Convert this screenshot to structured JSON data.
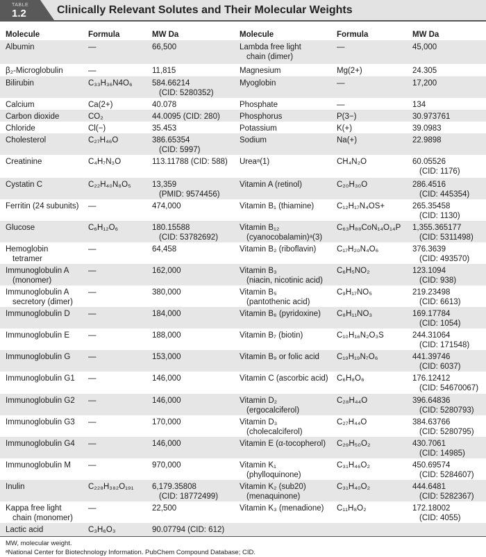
{
  "header": {
    "tag_label": "TABLE",
    "tag_number": "1.2",
    "title": "Clinically Relevant Solutes and Their Molecular Weights"
  },
  "columns": [
    "Molecule",
    "Formula",
    "MW Da",
    "Molecule",
    "Formula",
    "MW Da"
  ],
  "rows": [
    {
      "h": 34,
      "l": [
        "Albumin",
        "—",
        "66,500"
      ],
      "r": [
        "Lambda free light\nchain (dimer)",
        "—",
        "45,000"
      ]
    },
    {
      "h": 18,
      "l": [
        "β₂-Microglobulin",
        "—",
        "11,815"
      ],
      "r": [
        "Magnesium",
        "Mg(2+)",
        "24.305"
      ]
    },
    {
      "h": 31,
      "l": [
        "Bilirubin",
        "C₃₃H₃₆N4O₆",
        "584.66214\n(CID: 5280352)"
      ],
      "r": [
        "Myoglobin",
        "—",
        "17,200"
      ]
    },
    {
      "h": 17,
      "l": [
        "Calcium",
        "Ca(2+)",
        "40.078"
      ],
      "r": [
        "Phosphate",
        "—",
        "134"
      ]
    },
    {
      "h": 17,
      "l": [
        "Carbon dioxide",
        "CO₂",
        "44.0095 (CID: 280)"
      ],
      "r": [
        "Phosphorus",
        "P(3−)",
        "30.973761"
      ]
    },
    {
      "h": 17,
      "l": [
        "Chloride",
        "Cl(−)",
        "35.453"
      ],
      "r": [
        "Potassium",
        "K(+)",
        "39.0983"
      ]
    },
    {
      "h": 30,
      "l": [
        "Cholesterol",
        "C₂₇H₄₆O",
        "386.65354\n(CID: 5997)"
      ],
      "r": [
        "Sodium",
        "Na(+)",
        "22.9898"
      ]
    },
    {
      "h": 33,
      "l": [
        "Creatinine",
        "C₄H₇N₃O",
        "113.11788 (CID: 588)"
      ],
      "r": [
        "Ureaᵃ(1)",
        "CH₄N₂O",
        "60.05526\n(CID: 1176)"
      ]
    },
    {
      "h": 30,
      "l": [
        "Cystatin C",
        "C₂₂H₄₀N₈O₅",
        "13,359\n(PMID: 9574456)"
      ],
      "r": [
        "Vitamin A (retinol)",
        "C₂₀H₃₀O",
        "286.4516\n(CID: 445354)"
      ]
    },
    {
      "h": 31,
      "l": [
        "Ferritin (24 subunits)",
        "—",
        "474,000"
      ],
      "r": [
        "Vitamin B₁ (thiamine)",
        "C₁₂H₁₇N₄OS+",
        "265.35458\n(CID: 1130)"
      ]
    },
    {
      "h": 31,
      "l": [
        "Glucose",
        "C₆H₁₂O₆",
        "180.15588\n(CID: 53782692)"
      ],
      "r": [
        "Vitamin B₁₂\n(cyanocobalamin)ᵃ(3)",
        "C₆₃H₈₈CoN₁₄O₁₄P",
        "1,355.365177\n(CID: 5311498)"
      ]
    },
    {
      "h": 31,
      "l": [
        "Hemoglobin\ntetramer",
        "—",
        "64,458"
      ],
      "r": [
        "Vitamin B₂ (riboflavin)",
        "C₁₇H₂₀N₄O₆",
        "376.3639\n(CID: 493570)"
      ]
    },
    {
      "h": 31,
      "l": [
        "Immunoglobulin A\n(monomer)",
        "—",
        "162,000"
      ],
      "r": [
        "Vitamin B₃\n(niacin, nicotinic acid)",
        "C₆H₅NO₂",
        "123.1094\n(CID: 938)"
      ]
    },
    {
      "h": 31,
      "l": [
        "Immunoglobulin A\nsecretory (dimer)",
        "—",
        "380,000"
      ],
      "r": [
        "Vitamin B₅\n(pantothenic acid)",
        "C₉H₁₇NO₅",
        "219.23498\n(CID: 6613)"
      ]
    },
    {
      "h": 31,
      "l": [
        "Immunoglobulin D",
        "—",
        "184,000"
      ],
      "r": [
        "Vitamin B₆ (pyridoxine)",
        "C₈H₁₁NO₃",
        "169.17784\n(CID: 1054)"
      ]
    },
    {
      "h": 31,
      "l": [
        "Immunoglobulin E",
        "—",
        "188,000"
      ],
      "r": [
        "Vitamin B₇ (biotin)",
        "C₁₀H₁₆N₂O₃S",
        "244.31064\n(CID: 171548)"
      ]
    },
    {
      "h": 31,
      "l": [
        "Immunoglobulin G",
        "—",
        "153,000"
      ],
      "r": [
        "Vitamin B₉ or folic acid",
        "C₁₉H₁₉N₇O₆",
        "441.39746\n(CID: 6037)"
      ]
    },
    {
      "h": 32,
      "l": [
        "Immunoglobulin G1",
        "—",
        "146,000"
      ],
      "r": [
        "Vitamin C (ascorbic acid)",
        "C₆H₈O₆",
        "176.12412\n(CID: 54670067)"
      ]
    },
    {
      "h": 31,
      "l": [
        "Immunoglobulin G2",
        "—",
        "146,000"
      ],
      "r": [
        "Vitamin D₂\n(ergocalciferol)",
        "C₂₈H₄₄O",
        "396.64836\n(CID: 5280793)"
      ]
    },
    {
      "h": 31,
      "l": [
        "Immunoglobulin G3",
        "—",
        "170,000"
      ],
      "r": [
        "Vitamin D₃\n(cholecalciferol)",
        "C₂₇H₄₄O",
        "384.63766\n(CID: 5280795)"
      ]
    },
    {
      "h": 31,
      "l": [
        "Immunoglobulin G4",
        "—",
        "146,000"
      ],
      "r": [
        "Vitamin E (α-tocopherol)",
        "C₂₉H₅₀O₂",
        "430.7061\n(CID: 14985)"
      ]
    },
    {
      "h": 31,
      "l": [
        "Immunoglobulin M",
        "—",
        "970,000"
      ],
      "r": [
        "Vitamin K₁\n(phylloquinone)",
        "C₃₁H₄₆O₂",
        "450.69574\n(CID: 5284607)"
      ]
    },
    {
      "h": 31,
      "l": [
        "Inulin",
        "C₂₂₈H₃₈₂O₁₉₁",
        "6,179.35808\n(CID: 18772499)"
      ],
      "r": [
        "Vitamin K₂ (sub20)\n(menaquinone)",
        "C₃₁H₄₀O₂",
        "444.6481\n(CID: 5282367)"
      ]
    },
    {
      "h": 31,
      "l": [
        "Kappa free light\nchain (monomer)",
        "—",
        "22,500"
      ],
      "r": [
        "Vitamin K₃ (menadione)",
        "C₁₁H₈O₂",
        "172.18002\n(CID: 4055)"
      ]
    },
    {
      "h": 19,
      "l": [
        "Lactic acid",
        "C₃H₆O₃",
        "90.07794 (CID: 612)"
      ],
      "r": [
        "",
        "",
        ""
      ]
    }
  ],
  "footnotes": [
    "MW, molecular weight.",
    "ᵃNational Center for Biotechnology Information. PubChem Compound Database; CID."
  ]
}
